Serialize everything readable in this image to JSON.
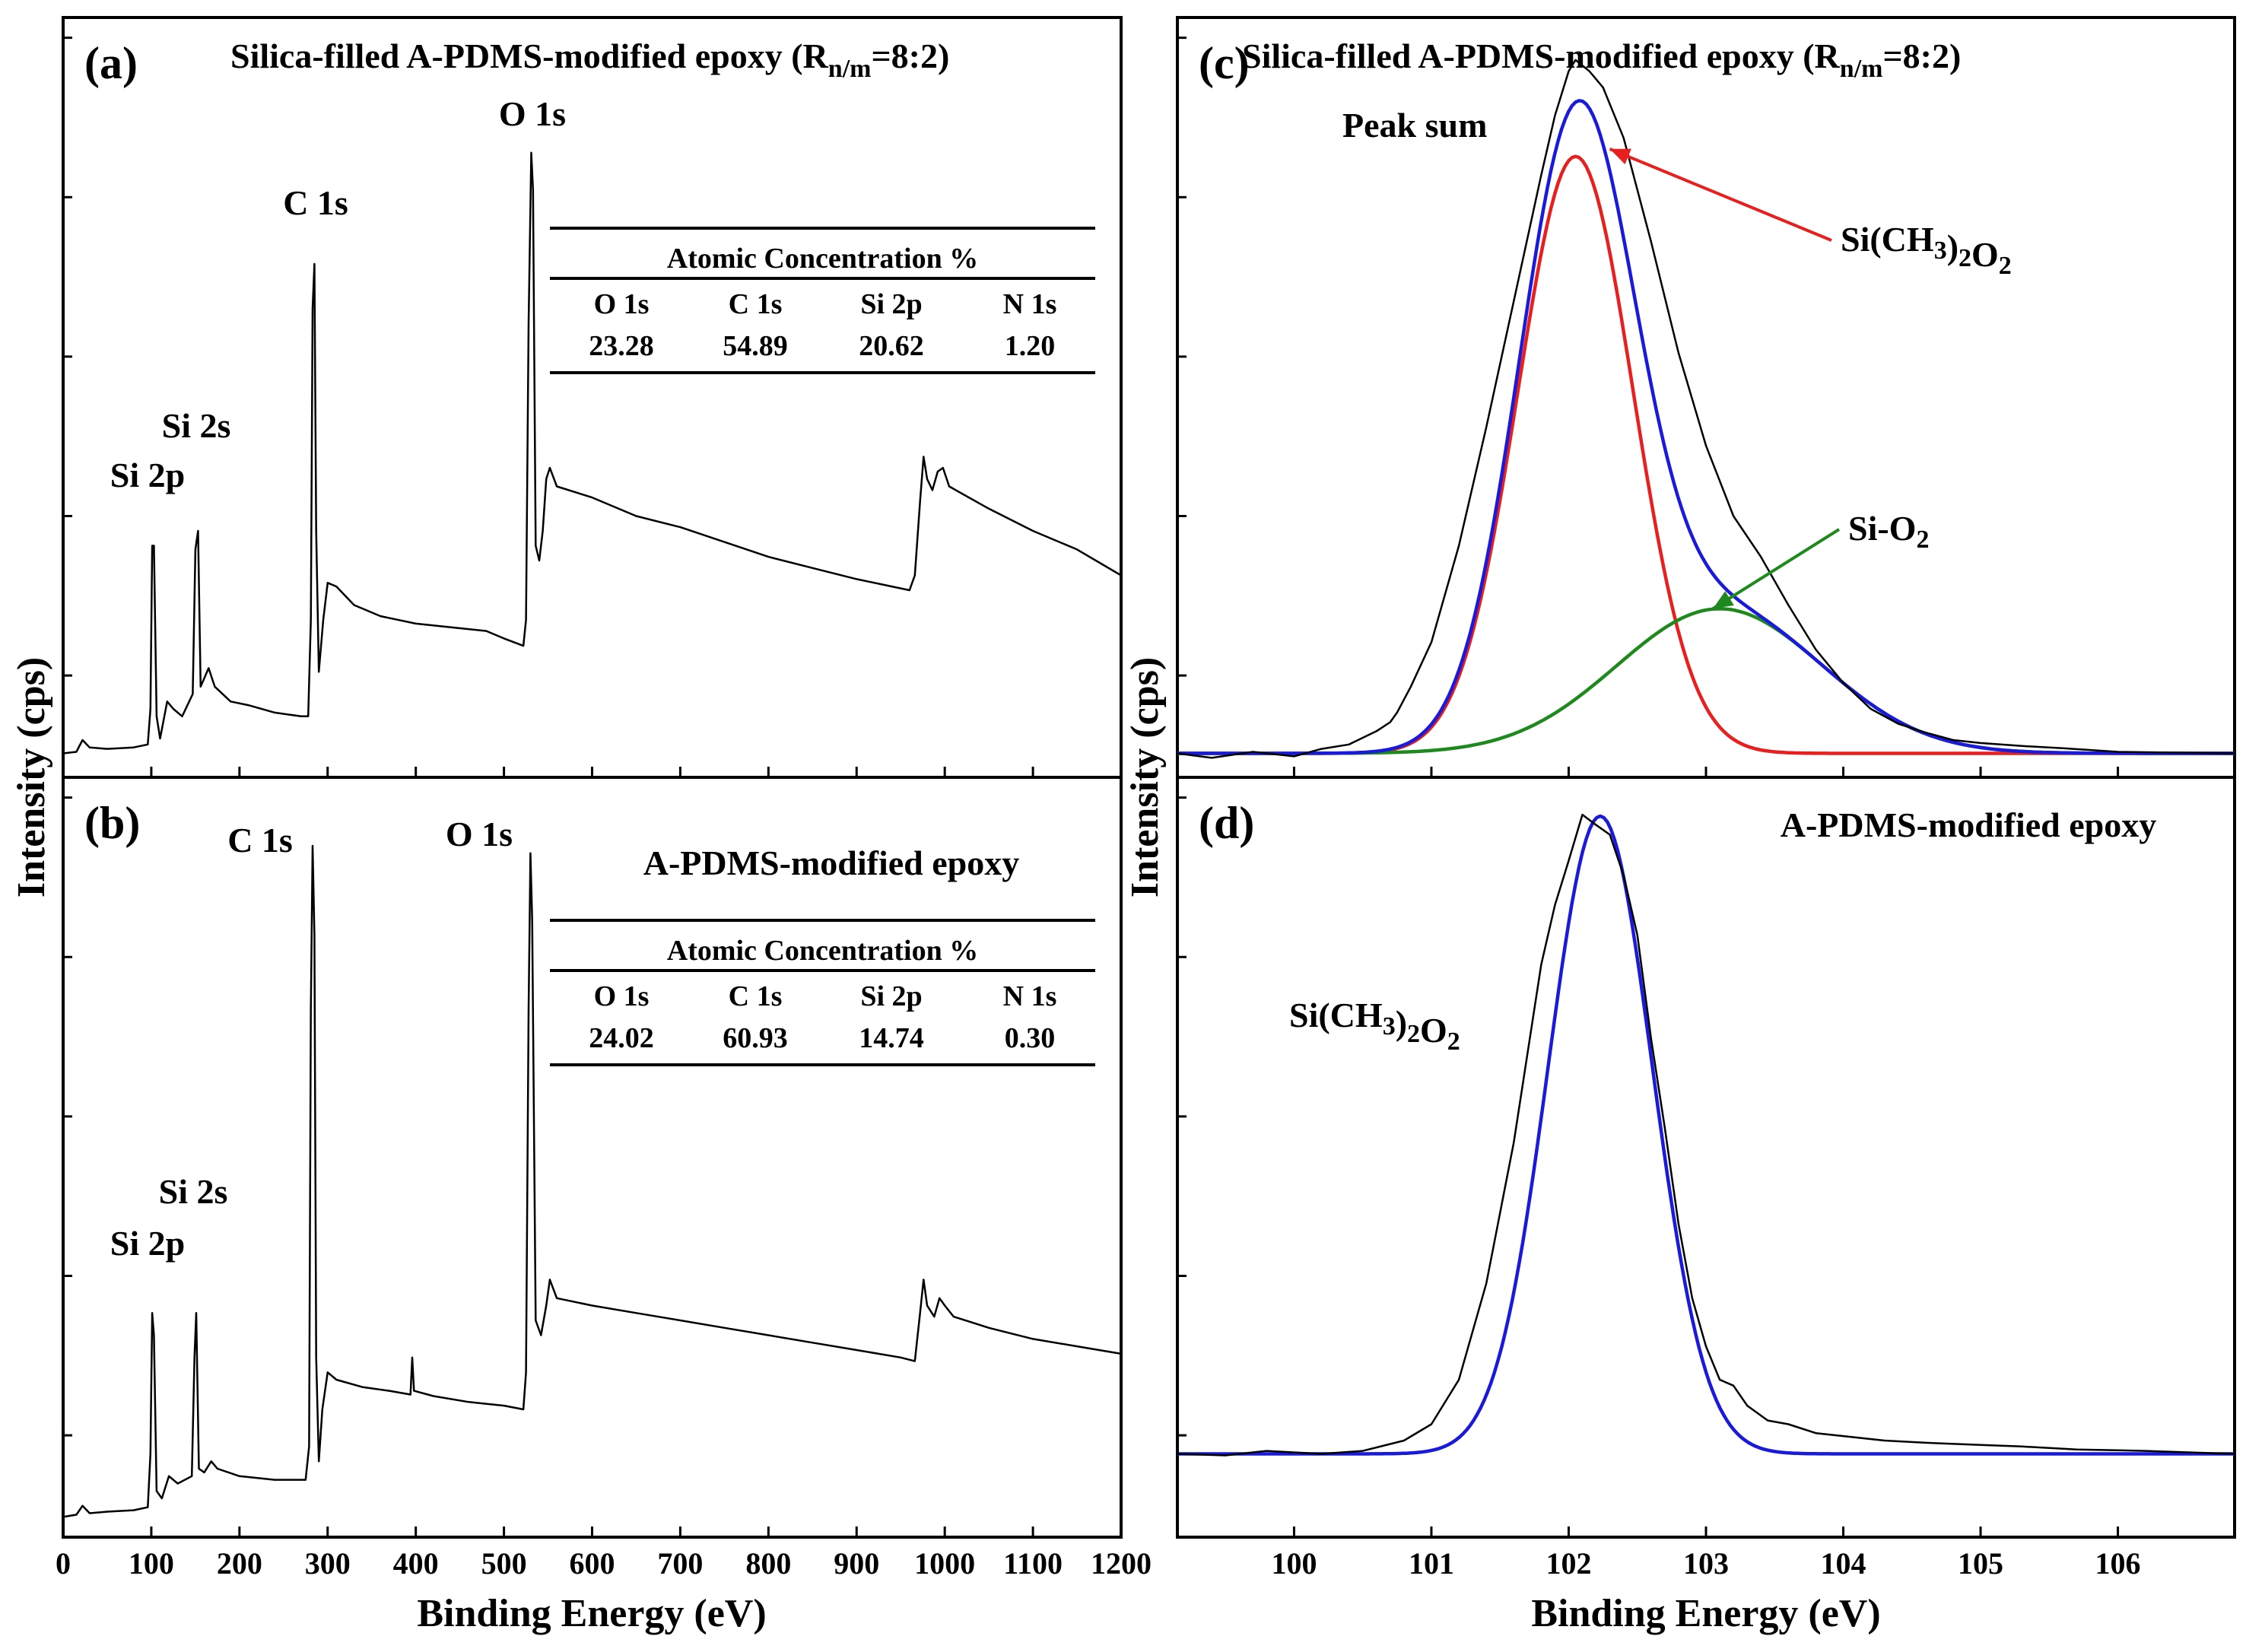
{
  "figure": {
    "y_axis_label": "Intensity (cps)",
    "x_axis_label_survey": "Binding Energy (eV)",
    "x_axis_label_highres": "Binding Energy (eV)"
  },
  "chart_data": [
    {
      "panel": "a",
      "type": "line",
      "tag": "(a)",
      "title": "Silica-filled A-PDMS-modified epoxy (R",
      "title_sub": "n/m",
      "title_end": "=8:2)",
      "xlabel": "",
      "ylabel": "Intensity (cps)",
      "xlim": [
        0,
        1200
      ],
      "ylim": [
        0,
        1000
      ],
      "x_ticks": [
        0,
        100,
        200,
        300,
        400,
        500,
        600,
        700,
        800,
        900,
        1000,
        1100,
        1200
      ],
      "peak_labels": [
        {
          "text": "O 1s",
          "x": 532,
          "y": 880
        },
        {
          "text": "C 1s",
          "x": 285,
          "y": 760
        },
        {
          "text": "Si 2s",
          "x": 150,
          "y": 470
        },
        {
          "text": "Si 2p",
          "x": 100,
          "y": 405
        }
      ],
      "series": [
        {
          "name": "survey",
          "color": "#000000",
          "points": [
            [
              0,
              20
            ],
            [
              15,
              22
            ],
            [
              22,
              38
            ],
            [
              30,
              28
            ],
            [
              50,
              26
            ],
            [
              80,
              28
            ],
            [
              96,
              32
            ],
            [
              99,
              80
            ],
            [
              101,
              300
            ],
            [
              103,
              300
            ],
            [
              106,
              70
            ],
            [
              110,
              40
            ],
            [
              118,
              90
            ],
            [
              125,
              80
            ],
            [
              135,
              70
            ],
            [
              147,
              100
            ],
            [
              150,
              295
            ],
            [
              153,
              320
            ],
            [
              156,
              110
            ],
            [
              165,
              135
            ],
            [
              172,
              110
            ],
            [
              190,
              90
            ],
            [
              210,
              85
            ],
            [
              240,
              75
            ],
            [
              270,
              70
            ],
            [
              278,
              70
            ],
            [
              281,
              200
            ],
            [
              283,
              620
            ],
            [
              285,
              680
            ],
            [
              287,
              320
            ],
            [
              290,
              130
            ],
            [
              295,
              200
            ],
            [
              300,
              250
            ],
            [
              310,
              245
            ],
            [
              330,
              220
            ],
            [
              360,
              205
            ],
            [
              400,
              195
            ],
            [
              440,
              190
            ],
            [
              480,
              185
            ],
            [
              500,
              175
            ],
            [
              522,
              165
            ],
            [
              525,
              200
            ],
            [
              528,
              600
            ],
            [
              531,
              830
            ],
            [
              533,
              780
            ],
            [
              536,
              300
            ],
            [
              540,
              280
            ],
            [
              544,
              320
            ],
            [
              548,
              390
            ],
            [
              552,
              405
            ],
            [
              560,
              380
            ],
            [
              600,
              365
            ],
            [
              650,
              340
            ],
            [
              700,
              325
            ],
            [
              750,
              305
            ],
            [
              800,
              285
            ],
            [
              850,
              270
            ],
            [
              900,
              255
            ],
            [
              940,
              245
            ],
            [
              960,
              240
            ],
            [
              966,
              260
            ],
            [
              972,
              360
            ],
            [
              976,
              420
            ],
            [
              980,
              390
            ],
            [
              986,
              375
            ],
            [
              992,
              400
            ],
            [
              998,
              405
            ],
            [
              1005,
              380
            ],
            [
              1020,
              370
            ],
            [
              1050,
              350
            ],
            [
              1100,
              320
            ],
            [
              1150,
              295
            ],
            [
              1200,
              260
            ]
          ]
        }
      ],
      "table": {
        "header": "Atomic Concentration %",
        "columns": [
          "O 1s",
          "C 1s",
          "Si 2p",
          "N 1s"
        ],
        "values": [
          "23.28",
          "54.89",
          "20.62",
          "1.20"
        ]
      }
    },
    {
      "panel": "b",
      "type": "line",
      "tag": "(b)",
      "title": "A-PDMS-modified epoxy",
      "xlabel": "Binding Energy (eV)",
      "ylabel": "Intensity (cps)",
      "xlim": [
        0,
        1200
      ],
      "ylim": [
        0,
        1000
      ],
      "x_ticks": [
        0,
        100,
        200,
        300,
        400,
        500,
        600,
        700,
        800,
        900,
        1000,
        1100,
        1200
      ],
      "peak_labels": [
        {
          "text": "C 1s",
          "x": 240,
          "y": 910
        },
        {
          "text": "O 1s",
          "x": 520,
          "y": 920
        },
        {
          "text": "Si 2s",
          "x": 150,
          "y": 440
        },
        {
          "text": "Si 2p",
          "x": 100,
          "y": 375
        }
      ],
      "series": [
        {
          "name": "survey",
          "color": "#000000",
          "points": [
            [
              0,
              15
            ],
            [
              15,
              18
            ],
            [
              22,
              30
            ],
            [
              30,
              20
            ],
            [
              50,
              22
            ],
            [
              80,
              24
            ],
            [
              96,
              28
            ],
            [
              99,
              100
            ],
            [
              101,
              290
            ],
            [
              103,
              260
            ],
            [
              106,
              50
            ],
            [
              112,
              40
            ],
            [
              120,
              70
            ],
            [
              130,
              60
            ],
            [
              146,
              70
            ],
            [
              149,
              230
            ],
            [
              151,
              290
            ],
            [
              154,
              80
            ],
            [
              160,
              75
            ],
            [
              168,
              90
            ],
            [
              175,
              80
            ],
            [
              200,
              70
            ],
            [
              240,
              65
            ],
            [
              275,
              65
            ],
            [
              279,
              110
            ],
            [
              281,
              700
            ],
            [
              283,
              920
            ],
            [
              285,
              800
            ],
            [
              287,
              230
            ],
            [
              290,
              90
            ],
            [
              294,
              160
            ],
            [
              300,
              210
            ],
            [
              310,
              200
            ],
            [
              340,
              190
            ],
            [
              370,
              185
            ],
            [
              394,
              180
            ],
            [
              396,
              230
            ],
            [
              398,
              185
            ],
            [
              420,
              178
            ],
            [
              460,
              170
            ],
            [
              500,
              165
            ],
            [
              522,
              160
            ],
            [
              525,
              210
            ],
            [
              528,
              700
            ],
            [
              530,
              910
            ],
            [
              532,
              820
            ],
            [
              536,
              280
            ],
            [
              542,
              260
            ],
            [
              548,
              300
            ],
            [
              552,
              335
            ],
            [
              560,
              310
            ],
            [
              600,
              300
            ],
            [
              650,
              290
            ],
            [
              700,
              280
            ],
            [
              750,
              270
            ],
            [
              800,
              260
            ],
            [
              850,
              250
            ],
            [
              900,
              240
            ],
            [
              950,
              230
            ],
            [
              966,
              225
            ],
            [
              972,
              290
            ],
            [
              976,
              335
            ],
            [
              980,
              300
            ],
            [
              988,
              285
            ],
            [
              994,
              310
            ],
            [
              1000,
              300
            ],
            [
              1010,
              285
            ],
            [
              1050,
              270
            ],
            [
              1100,
              255
            ],
            [
              1150,
              245
            ],
            [
              1200,
              235
            ]
          ]
        }
      ],
      "table": {
        "header": "Atomic Concentration %",
        "columns": [
          "O 1s",
          "C 1s",
          "Si 2p",
          "N 1s"
        ],
        "values": [
          "24.02",
          "60.93",
          "14.74",
          "0.30"
        ]
      }
    },
    {
      "panel": "c",
      "type": "line",
      "tag": "(c)",
      "title": "Silica-filled A-PDMS-modified epoxy (R",
      "title_sub": "n/m",
      "title_end": "=8:2)",
      "xlabel": "",
      "ylabel": "Intensity (cps)",
      "xlim": [
        99.15,
        106.85
      ],
      "ylim": [
        0,
        1000
      ],
      "x_ticks": [
        100,
        101,
        102,
        103,
        104,
        105,
        106
      ],
      "annotations": [
        {
          "text": "Peak sum",
          "color": "#1a1adb"
        },
        {
          "text": "Si(CH3)2O2",
          "color": "#e81f1f",
          "arrow_to": [
            102.3,
            835
          ]
        },
        {
          "text": "Si-O2",
          "color": "#1e8a1e",
          "arrow_to": [
            103.05,
            215
          ]
        }
      ],
      "series": [
        {
          "name": "Si(CH3)2O2",
          "color": "#e81f1f",
          "model": "gauss",
          "baseline": 20,
          "amp": 805,
          "center": 102.05,
          "sigma": 0.42
        },
        {
          "name": "Si-O2",
          "color": "#1e8a1e",
          "model": "gauss",
          "baseline": 20,
          "amp": 195,
          "center": 103.1,
          "sigma": 0.75
        },
        {
          "name": "Peak sum",
          "color": "#1a1adb",
          "model": "sum"
        },
        {
          "name": "raw data",
          "color": "#000000",
          "points": [
            [
              99.15,
              20
            ],
            [
              99.4,
              14
            ],
            [
              99.7,
              22
            ],
            [
              100.0,
              16
            ],
            [
              100.2,
              26
            ],
            [
              100.4,
              32
            ],
            [
              100.6,
              50
            ],
            [
              100.7,
              62
            ],
            [
              100.75,
              75
            ],
            [
              100.85,
              110
            ],
            [
              101.0,
              170
            ],
            [
              101.2,
              300
            ],
            [
              101.4,
              460
            ],
            [
              101.6,
              630
            ],
            [
              101.8,
              800
            ],
            [
              101.9,
              880
            ],
            [
              102.0,
              940
            ],
            [
              102.05,
              955
            ],
            [
              102.15,
              940
            ],
            [
              102.25,
              918
            ],
            [
              102.4,
              850
            ],
            [
              102.6,
              710
            ],
            [
              102.8,
              560
            ],
            [
              103.0,
              435
            ],
            [
              103.2,
              340
            ],
            [
              103.4,
              285
            ],
            [
              103.6,
              220
            ],
            [
              103.8,
              160
            ],
            [
              104.0,
              115
            ],
            [
              104.2,
              80
            ],
            [
              104.4,
              60
            ],
            [
              104.6,
              48
            ],
            [
              104.8,
              38
            ],
            [
              105.0,
              34
            ],
            [
              105.3,
              30
            ],
            [
              105.6,
              27
            ],
            [
              106.0,
              22
            ],
            [
              106.4,
              21
            ],
            [
              106.85,
              20
            ]
          ]
        }
      ]
    },
    {
      "panel": "d",
      "type": "line",
      "tag": "(d)",
      "title": "A-PDMS-modified epoxy",
      "xlabel": "Binding Energy (eV)",
      "ylabel": "Intensity (cps)",
      "xlim": [
        99.15,
        106.85
      ],
      "ylim": [
        0,
        1000
      ],
      "x_ticks": [
        100,
        101,
        102,
        103,
        104,
        105,
        106
      ],
      "annotations": [
        {
          "text": "Si(CH3)2O2",
          "color": "#1a1adb"
        }
      ],
      "series": [
        {
          "name": "Si(CH3)2O2",
          "color": "#1a1adb",
          "model": "gauss",
          "baseline": 100,
          "amp": 860,
          "center": 102.23,
          "sigma": 0.38
        },
        {
          "name": "raw data",
          "color": "#000000",
          "points": [
            [
              99.15,
              100
            ],
            [
              99.5,
              98
            ],
            [
              99.8,
              104
            ],
            [
              100.2,
              100
            ],
            [
              100.5,
              104
            ],
            [
              100.8,
              118
            ],
            [
              101.0,
              140
            ],
            [
              101.2,
              200
            ],
            [
              101.4,
              330
            ],
            [
              101.6,
              520
            ],
            [
              101.8,
              760
            ],
            [
              101.9,
              840
            ],
            [
              102.0,
              900
            ],
            [
              102.1,
              962
            ],
            [
              102.2,
              948
            ],
            [
              102.3,
              935
            ],
            [
              102.4,
              880
            ],
            [
              102.5,
              800
            ],
            [
              102.6,
              660
            ],
            [
              102.7,
              540
            ],
            [
              102.8,
              410
            ],
            [
              102.9,
              310
            ],
            [
              103.0,
              245
            ],
            [
              103.1,
              200
            ],
            [
              103.2,
              192
            ],
            [
              103.3,
              165
            ],
            [
              103.45,
              145
            ],
            [
              103.6,
              140
            ],
            [
              103.8,
              128
            ],
            [
              104.0,
              124
            ],
            [
              104.3,
              118
            ],
            [
              104.6,
              115
            ],
            [
              105.0,
              112
            ],
            [
              105.3,
              110
            ],
            [
              105.7,
              106
            ],
            [
              106.2,
              104
            ],
            [
              106.85,
              100
            ]
          ]
        }
      ]
    }
  ]
}
